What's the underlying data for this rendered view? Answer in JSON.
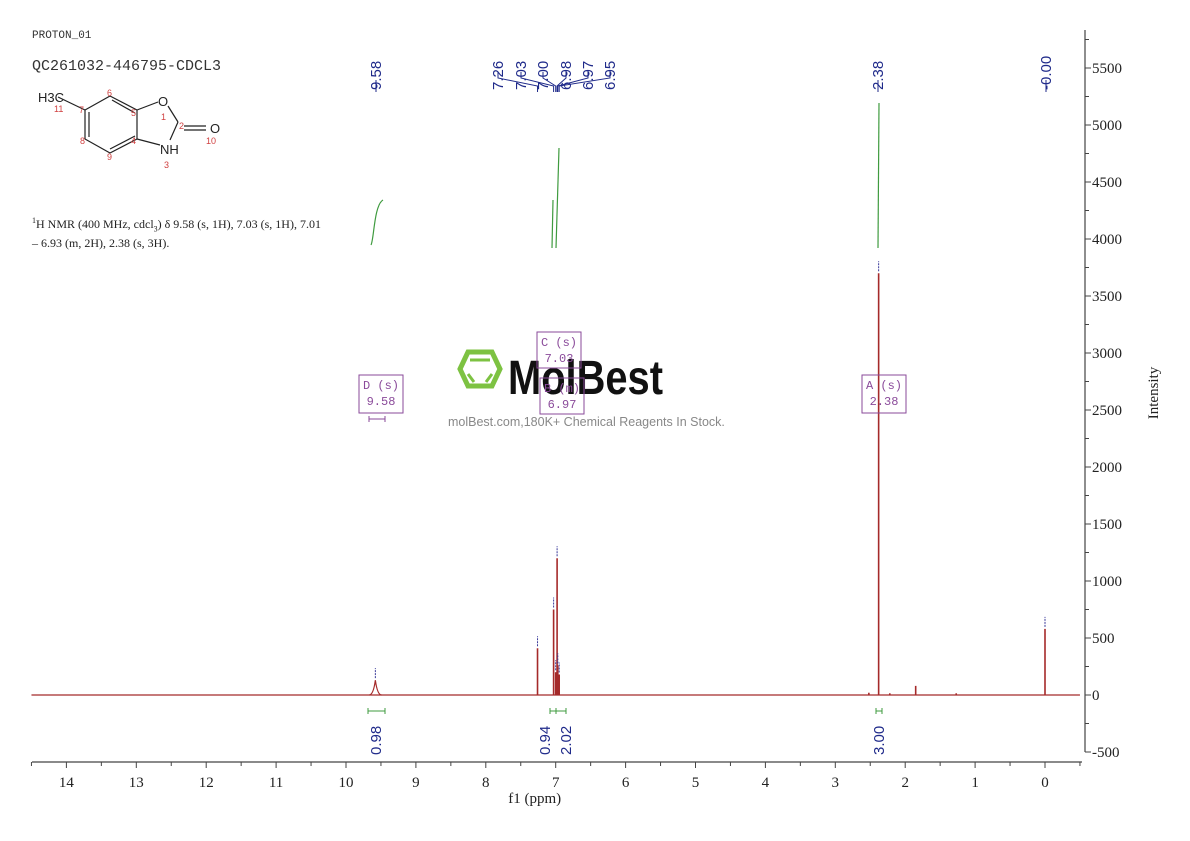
{
  "header": {
    "experiment": "PROTON_01",
    "sample": "QC261032-446795-CDCL3"
  },
  "structure": {
    "substituent": "H3C",
    "atoms": [
      {
        "id": "1",
        "symbol": "O"
      },
      {
        "id": "2",
        "symbol": "C"
      },
      {
        "id": "3",
        "symbol": "NH"
      },
      {
        "id": "4",
        "symbol": "C"
      },
      {
        "id": "5",
        "symbol": "C"
      },
      {
        "id": "6",
        "symbol": "C"
      },
      {
        "id": "7",
        "symbol": "C"
      },
      {
        "id": "8",
        "symbol": "C"
      },
      {
        "id": "9",
        "symbol": "C"
      },
      {
        "id": "10",
        "symbol": "O"
      },
      {
        "id": "11",
        "symbol": "CH3"
      }
    ]
  },
  "summary": {
    "prefix_sup": "1",
    "text_line1": "H NMR (400 MHz, cdcl",
    "sub3": "3",
    "text_line1b": ") δ 9.58 (s, 1H), 7.03 (s, 1H), 7.01",
    "text_line2": "– 6.93 (m, 2H), 2.38 (s, 3H)."
  },
  "watermark": {
    "brand": "MolBest",
    "tagline": "molBest.com,180K+ Chemical Reagents In Stock.",
    "logo_color": "#7dc242"
  },
  "colors": {
    "spectrum": "#a52a2a",
    "integral": "#3f9b3f",
    "peak_label": "#1f2a8a",
    "multiplet_box": "#8a4a9a",
    "axis": "#444444"
  },
  "chart_data": {
    "type": "line",
    "title": "QC261032-446795-CDCL3",
    "subtitle": "PROTON_01",
    "xlabel": "f1 (ppm)",
    "ylabel": "Intensity",
    "xlim": [
      14.5,
      -0.5
    ],
    "ylim": [
      -500,
      5800
    ],
    "x_ticks": [
      "14",
      "13",
      "12",
      "11",
      "10",
      "9",
      "8",
      "7",
      "6",
      "5",
      "4",
      "3",
      "2",
      "1",
      "0"
    ],
    "y_ticks": [
      "-500",
      "0",
      "500",
      "1000",
      "1500",
      "2000",
      "2500",
      "3000",
      "3500",
      "4000",
      "4500",
      "5000",
      "5500"
    ],
    "grid": false,
    "peak_labels": [
      "9.58",
      "7.26",
      "7.03",
      "7.00",
      "6.98",
      "6.97",
      "6.95",
      "2.38",
      "-0.00"
    ],
    "peaks": [
      {
        "ppm": 9.58,
        "intensity": 130,
        "width": 0.03
      },
      {
        "ppm": 7.26,
        "intensity": 410
      },
      {
        "ppm": 7.03,
        "intensity": 750
      },
      {
        "ppm": 7.0,
        "intensity": 200
      },
      {
        "ppm": 6.98,
        "intensity": 1200
      },
      {
        "ppm": 6.97,
        "intensity": 260
      },
      {
        "ppm": 6.95,
        "intensity": 180
      },
      {
        "ppm": 2.38,
        "intensity": 3700
      },
      {
        "ppm": 2.52,
        "intensity": 20
      },
      {
        "ppm": 2.22,
        "intensity": 15
      },
      {
        "ppm": 1.85,
        "intensity": 80
      },
      {
        "ppm": 1.27,
        "intensity": 15
      },
      {
        "ppm": 0.0,
        "intensity": 580
      }
    ],
    "integrals": [
      {
        "range": [
          9.65,
          9.5
        ],
        "value": "0.98"
      },
      {
        "range": [
          7.05,
          7.01
        ],
        "value": "0.94"
      },
      {
        "range": [
          7.01,
          6.93
        ],
        "value": "2.02"
      },
      {
        "range": [
          2.4,
          2.36
        ],
        "value": "3.00"
      }
    ],
    "multiplets": [
      {
        "label": "A (s)",
        "shift": "2.38"
      },
      {
        "label": "B (m)",
        "shift": "6.97"
      },
      {
        "label": "C (s)",
        "shift": "7.03"
      },
      {
        "label": "D (s)",
        "shift": "9.58"
      }
    ]
  }
}
